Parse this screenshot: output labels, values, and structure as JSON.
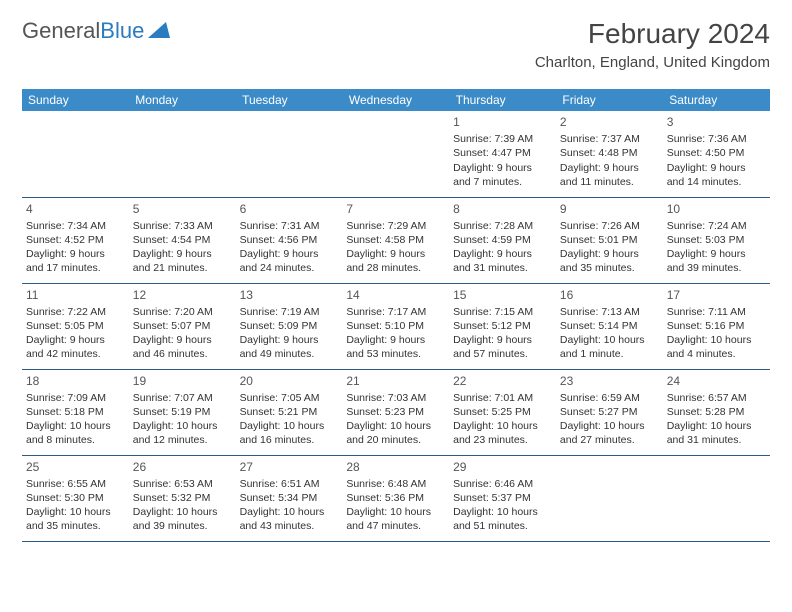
{
  "logo": {
    "text1": "General",
    "text2": "Blue"
  },
  "title": "February 2024",
  "location": "Charlton, England, United Kingdom",
  "colors": {
    "header_bg": "#3b8bc9",
    "border": "#2a5a8a",
    "text": "#333333",
    "logo_gray": "#555555",
    "logo_blue": "#2a7bbf"
  },
  "day_headers": [
    "Sunday",
    "Monday",
    "Tuesday",
    "Wednesday",
    "Thursday",
    "Friday",
    "Saturday"
  ],
  "weeks": [
    [
      null,
      null,
      null,
      null,
      {
        "n": "1",
        "sr": "Sunrise: 7:39 AM",
        "ss": "Sunset: 4:47 PM",
        "d1": "Daylight: 9 hours",
        "d2": "and 7 minutes."
      },
      {
        "n": "2",
        "sr": "Sunrise: 7:37 AM",
        "ss": "Sunset: 4:48 PM",
        "d1": "Daylight: 9 hours",
        "d2": "and 11 minutes."
      },
      {
        "n": "3",
        "sr": "Sunrise: 7:36 AM",
        "ss": "Sunset: 4:50 PM",
        "d1": "Daylight: 9 hours",
        "d2": "and 14 minutes."
      }
    ],
    [
      {
        "n": "4",
        "sr": "Sunrise: 7:34 AM",
        "ss": "Sunset: 4:52 PM",
        "d1": "Daylight: 9 hours",
        "d2": "and 17 minutes."
      },
      {
        "n": "5",
        "sr": "Sunrise: 7:33 AM",
        "ss": "Sunset: 4:54 PM",
        "d1": "Daylight: 9 hours",
        "d2": "and 21 minutes."
      },
      {
        "n": "6",
        "sr": "Sunrise: 7:31 AM",
        "ss": "Sunset: 4:56 PM",
        "d1": "Daylight: 9 hours",
        "d2": "and 24 minutes."
      },
      {
        "n": "7",
        "sr": "Sunrise: 7:29 AM",
        "ss": "Sunset: 4:58 PM",
        "d1": "Daylight: 9 hours",
        "d2": "and 28 minutes."
      },
      {
        "n": "8",
        "sr": "Sunrise: 7:28 AM",
        "ss": "Sunset: 4:59 PM",
        "d1": "Daylight: 9 hours",
        "d2": "and 31 minutes."
      },
      {
        "n": "9",
        "sr": "Sunrise: 7:26 AM",
        "ss": "Sunset: 5:01 PM",
        "d1": "Daylight: 9 hours",
        "d2": "and 35 minutes."
      },
      {
        "n": "10",
        "sr": "Sunrise: 7:24 AM",
        "ss": "Sunset: 5:03 PM",
        "d1": "Daylight: 9 hours",
        "d2": "and 39 minutes."
      }
    ],
    [
      {
        "n": "11",
        "sr": "Sunrise: 7:22 AM",
        "ss": "Sunset: 5:05 PM",
        "d1": "Daylight: 9 hours",
        "d2": "and 42 minutes."
      },
      {
        "n": "12",
        "sr": "Sunrise: 7:20 AM",
        "ss": "Sunset: 5:07 PM",
        "d1": "Daylight: 9 hours",
        "d2": "and 46 minutes."
      },
      {
        "n": "13",
        "sr": "Sunrise: 7:19 AM",
        "ss": "Sunset: 5:09 PM",
        "d1": "Daylight: 9 hours",
        "d2": "and 49 minutes."
      },
      {
        "n": "14",
        "sr": "Sunrise: 7:17 AM",
        "ss": "Sunset: 5:10 PM",
        "d1": "Daylight: 9 hours",
        "d2": "and 53 minutes."
      },
      {
        "n": "15",
        "sr": "Sunrise: 7:15 AM",
        "ss": "Sunset: 5:12 PM",
        "d1": "Daylight: 9 hours",
        "d2": "and 57 minutes."
      },
      {
        "n": "16",
        "sr": "Sunrise: 7:13 AM",
        "ss": "Sunset: 5:14 PM",
        "d1": "Daylight: 10 hours",
        "d2": "and 1 minute."
      },
      {
        "n": "17",
        "sr": "Sunrise: 7:11 AM",
        "ss": "Sunset: 5:16 PM",
        "d1": "Daylight: 10 hours",
        "d2": "and 4 minutes."
      }
    ],
    [
      {
        "n": "18",
        "sr": "Sunrise: 7:09 AM",
        "ss": "Sunset: 5:18 PM",
        "d1": "Daylight: 10 hours",
        "d2": "and 8 minutes."
      },
      {
        "n": "19",
        "sr": "Sunrise: 7:07 AM",
        "ss": "Sunset: 5:19 PM",
        "d1": "Daylight: 10 hours",
        "d2": "and 12 minutes."
      },
      {
        "n": "20",
        "sr": "Sunrise: 7:05 AM",
        "ss": "Sunset: 5:21 PM",
        "d1": "Daylight: 10 hours",
        "d2": "and 16 minutes."
      },
      {
        "n": "21",
        "sr": "Sunrise: 7:03 AM",
        "ss": "Sunset: 5:23 PM",
        "d1": "Daylight: 10 hours",
        "d2": "and 20 minutes."
      },
      {
        "n": "22",
        "sr": "Sunrise: 7:01 AM",
        "ss": "Sunset: 5:25 PM",
        "d1": "Daylight: 10 hours",
        "d2": "and 23 minutes."
      },
      {
        "n": "23",
        "sr": "Sunrise: 6:59 AM",
        "ss": "Sunset: 5:27 PM",
        "d1": "Daylight: 10 hours",
        "d2": "and 27 minutes."
      },
      {
        "n": "24",
        "sr": "Sunrise: 6:57 AM",
        "ss": "Sunset: 5:28 PM",
        "d1": "Daylight: 10 hours",
        "d2": "and 31 minutes."
      }
    ],
    [
      {
        "n": "25",
        "sr": "Sunrise: 6:55 AM",
        "ss": "Sunset: 5:30 PM",
        "d1": "Daylight: 10 hours",
        "d2": "and 35 minutes."
      },
      {
        "n": "26",
        "sr": "Sunrise: 6:53 AM",
        "ss": "Sunset: 5:32 PM",
        "d1": "Daylight: 10 hours",
        "d2": "and 39 minutes."
      },
      {
        "n": "27",
        "sr": "Sunrise: 6:51 AM",
        "ss": "Sunset: 5:34 PM",
        "d1": "Daylight: 10 hours",
        "d2": "and 43 minutes."
      },
      {
        "n": "28",
        "sr": "Sunrise: 6:48 AM",
        "ss": "Sunset: 5:36 PM",
        "d1": "Daylight: 10 hours",
        "d2": "and 47 minutes."
      },
      {
        "n": "29",
        "sr": "Sunrise: 6:46 AM",
        "ss": "Sunset: 5:37 PM",
        "d1": "Daylight: 10 hours",
        "d2": "and 51 minutes."
      },
      null,
      null
    ]
  ]
}
